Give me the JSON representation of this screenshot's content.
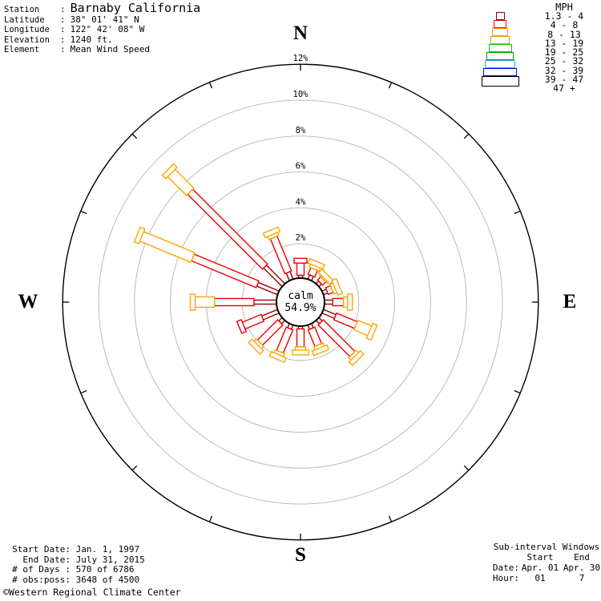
{
  "station": {
    "separator": ":",
    "rows": [
      {
        "label": "Station",
        "value": "Barnaby California",
        "big": true
      },
      {
        "label": "Latitude",
        "value": "38° 01' 41\" N"
      },
      {
        "label": "Longitude",
        "value": "122° 42' 08\" W"
      },
      {
        "label": "Elevation",
        "value": "1240 ft."
      },
      {
        "label": "Element",
        "value": "Mean Wind Speed"
      }
    ]
  },
  "legend": {
    "title": "MPH",
    "bins": [
      {
        "range": "1.3 - 4",
        "color": "#990000"
      },
      {
        "range": "4 - 8",
        "color": "#EE0000"
      },
      {
        "range": "8 - 13",
        "color": "#FFA500"
      },
      {
        "range": "13 - 19",
        "color": "#E09C00"
      },
      {
        "range": "19 - 25",
        "color": "#00CC00"
      },
      {
        "range": "25 - 32",
        "color": "#009900"
      },
      {
        "range": "32 - 39",
        "color": "#29A8F0"
      },
      {
        "range": "39 - 47",
        "color": "#0000E6"
      },
      {
        "range": "47 +",
        "color": "#000000"
      }
    ]
  },
  "chart_data": {
    "type": "wind_rose",
    "units": "MPH",
    "calm_label": "calm",
    "calm_percent_label": "54.9%",
    "ring_percents": [
      2,
      4,
      6,
      8,
      10,
      12
    ],
    "ring_label_suffix": "%",
    "compass": [
      {
        "dir": "N",
        "angle": 0
      },
      {
        "dir": "E",
        "angle": 90
      },
      {
        "dir": "S",
        "angle": 180
      },
      {
        "dir": "W",
        "angle": 270
      }
    ],
    "note": "segments = % frequency in speed bins [1.3-4, 4-8, 8-13] MPH, per direction",
    "directions": [
      {
        "dir": "N",
        "angle": 0.0,
        "segments": [
          0.2,
          0.9,
          0
        ]
      },
      {
        "dir": "NNE",
        "angle": 22.5,
        "segments": [
          0.3,
          0.4,
          0.4
        ]
      },
      {
        "dir": "NE",
        "angle": 45.0,
        "segments": [
          0.25,
          0.25,
          0.3
        ]
      },
      {
        "dir": "ENE",
        "angle": 67.5,
        "segments": [
          0.3,
          0.3,
          0.4
        ]
      },
      {
        "dir": "E",
        "angle": 90.0,
        "segments": [
          0.5,
          0.6,
          0.45
        ]
      },
      {
        "dir": "ESE",
        "angle": 112.5,
        "segments": [
          0.8,
          1.25,
          1.05
        ]
      },
      {
        "dir": "SE",
        "angle": 135.0,
        "segments": [
          0.3,
          2.5,
          0.4
        ]
      },
      {
        "dir": "SSE",
        "angle": 157.5,
        "segments": [
          0.3,
          1.0,
          0.4
        ]
      },
      {
        "dir": "S",
        "angle": 180.0,
        "segments": [
          0.2,
          1.0,
          0.4
        ]
      },
      {
        "dir": "SSW",
        "angle": 202.5,
        "segments": [
          0.3,
          1.4,
          0.4
        ]
      },
      {
        "dir": "SW",
        "angle": 225.0,
        "segments": [
          0.3,
          1.6,
          0.4
        ]
      },
      {
        "dir": "WSW",
        "angle": 247.5,
        "segments": [
          1.0,
          1.35,
          0
        ]
      },
      {
        "dir": "W",
        "angle": 270.0,
        "segments": [
          1.3,
          2.2,
          1.3
        ]
      },
      {
        "dir": "WNW",
        "angle": 292.5,
        "segments": [
          1.3,
          3.9,
          3.3
        ]
      },
      {
        "dir": "NW",
        "angle": 315.0,
        "segments": [
          1.5,
          5.9,
          1.7
        ]
      },
      {
        "dir": "NNW",
        "angle": 337.5,
        "segments": [
          0.5,
          2.1,
          0.4
        ]
      }
    ]
  },
  "footer_left": {
    "rows": [
      {
        "label": "Start Date:",
        "value": "Jan. 1, 1997"
      },
      {
        "label": "End Date:",
        "value": "July 31, 2015"
      },
      {
        "label": "# of Days :",
        "value": "570 of 6786"
      },
      {
        "label": "# obs:poss:",
        "value": "3648 of 4500"
      }
    ]
  },
  "copyright": "©Western Regional Climate Center",
  "footer_right": {
    "title": "Sub-interval Windows",
    "columns": [
      "Start",
      "End"
    ],
    "rows": [
      {
        "label": "Date:",
        "start": "Apr. 01",
        "end": "Apr. 30"
      },
      {
        "label": "Hour:",
        "start": "01",
        "end": "7"
      }
    ]
  }
}
